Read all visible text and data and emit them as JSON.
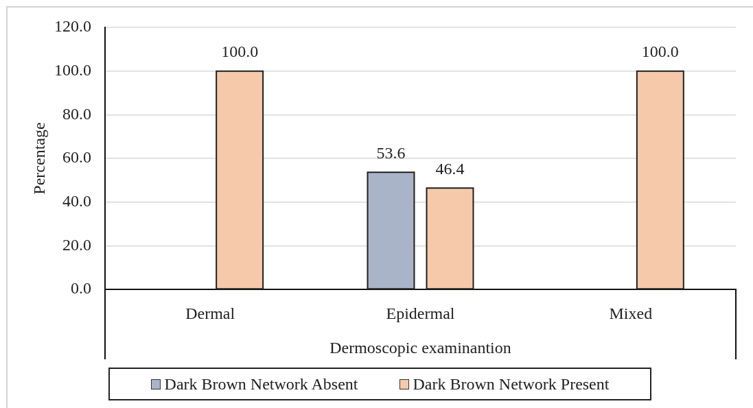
{
  "chart_data": {
    "type": "bar",
    "xlabel": "Dermoscopic examinantion",
    "ylabel": "Percentage",
    "categories": [
      "Dermal",
      "Epidermal",
      "Mixed"
    ],
    "series": [
      {
        "name": "Dark Brown Network Absent",
        "color": "#a9b4c8",
        "values": [
          null,
          53.6,
          null
        ],
        "value_labels": [
          null,
          "53.6",
          null
        ]
      },
      {
        "name": "Dark Brown Network Present",
        "color": "#f6c9aa",
        "values": [
          100,
          46.4,
          100
        ],
        "value_labels": [
          "100.0",
          "46.4",
          "100.0"
        ]
      }
    ],
    "ylim": [
      0,
      120
    ],
    "yticks": [
      {
        "value": 0,
        "label": "0.0"
      },
      {
        "value": 20,
        "label": "20.0"
      },
      {
        "value": 40,
        "label": "40.0"
      },
      {
        "value": 60,
        "label": "60.0"
      },
      {
        "value": 80,
        "label": "80.0"
      },
      {
        "value": 100,
        "label": "100.0"
      },
      {
        "value": 120,
        "label": "120.0"
      }
    ],
    "grid": "y",
    "legend": "bottom"
  }
}
